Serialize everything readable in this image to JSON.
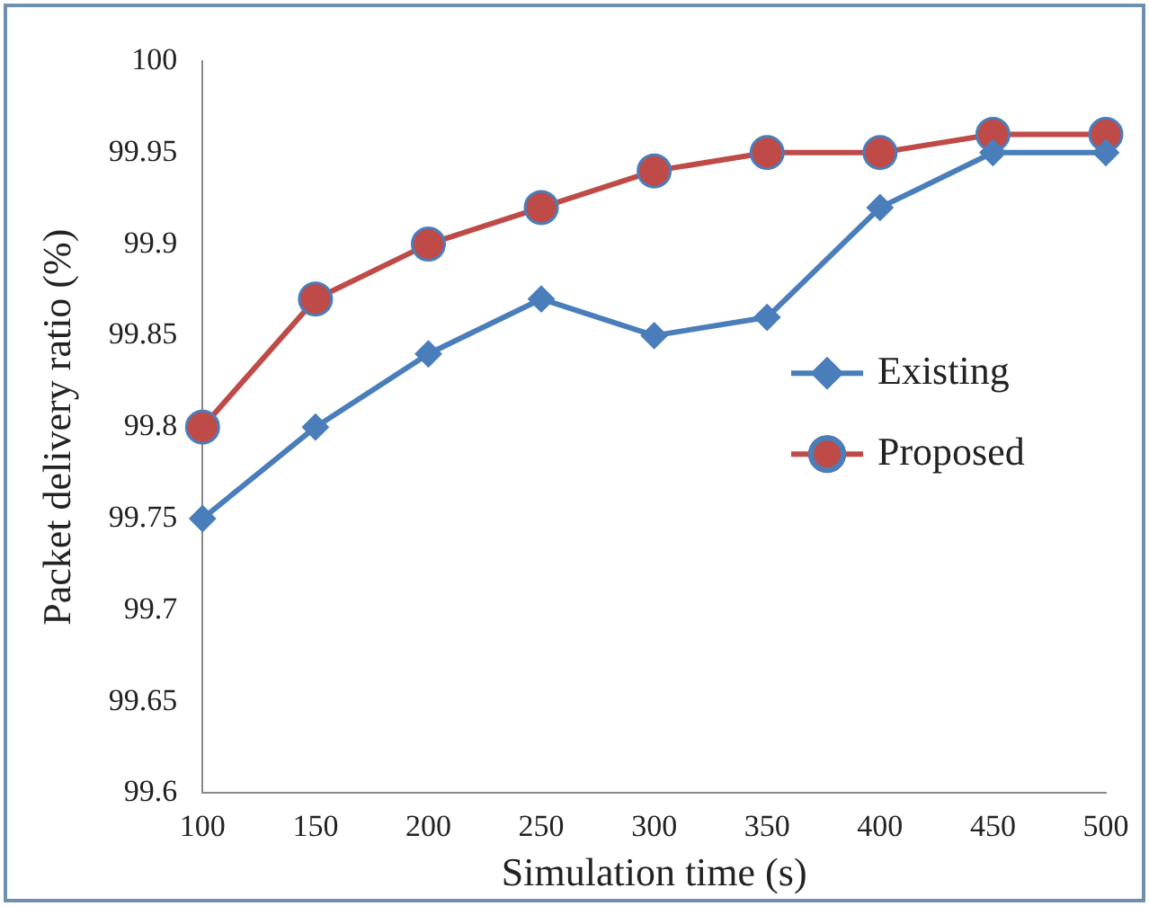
{
  "chart_data": {
    "type": "line",
    "xlabel": "Simulation time (s)",
    "ylabel": "Packet delivery ratio (%)",
    "categories": [
      "100",
      "150",
      "200",
      "250",
      "300",
      "350",
      "400",
      "450",
      "500"
    ],
    "ylim": [
      99.6,
      100
    ],
    "yticks": [
      99.6,
      99.65,
      99.7,
      99.75,
      99.8,
      99.85,
      99.9,
      99.95,
      100
    ],
    "grid": false,
    "legend": "right",
    "series": [
      {
        "name": "Existing",
        "color": "#4a7ebb",
        "marker": "diamond",
        "values": [
          99.75,
          99.8,
          99.84,
          99.87,
          99.85,
          99.86,
          99.92,
          99.95,
          99.95
        ]
      },
      {
        "name": "Proposed",
        "color": "#be4b48",
        "marker": "circle",
        "values": [
          99.8,
          99.87,
          99.9,
          99.92,
          99.94,
          99.95,
          99.95,
          99.96,
          99.96
        ]
      }
    ]
  }
}
